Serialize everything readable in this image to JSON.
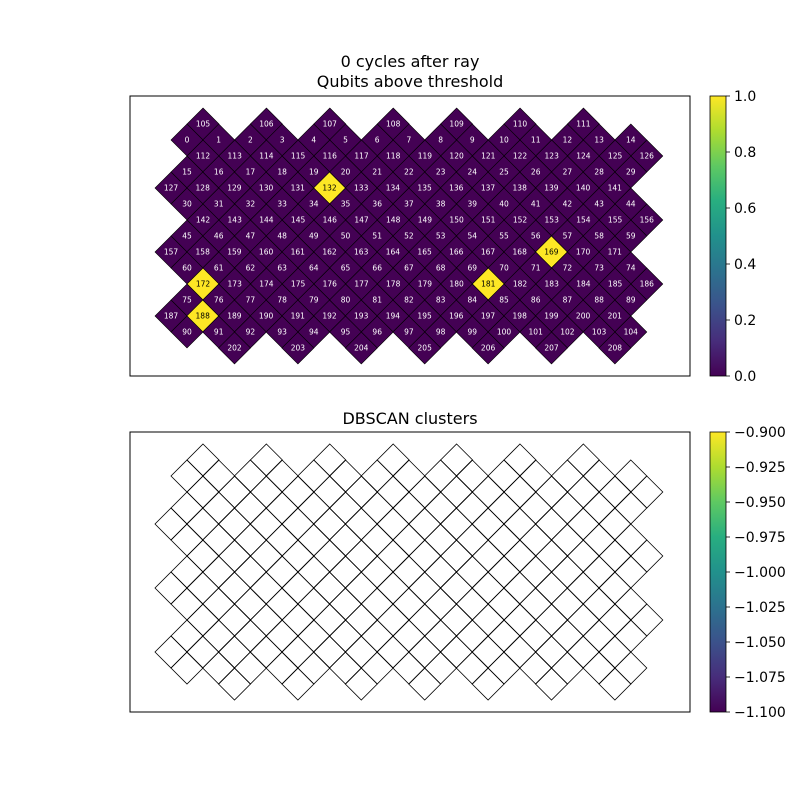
{
  "chart_data": [
    {
      "type": "heatmap",
      "title": "0 cycles after ray\nQubits above threshold",
      "title_lines": [
        "0 cycles after ray",
        "Qubits above threshold"
      ],
      "xlabel": "",
      "ylabel": "",
      "grid": false,
      "legend": "none",
      "colormap": "viridis",
      "value_range": [
        0,
        1
      ],
      "colorbar": {
        "position": "right",
        "range": [
          0,
          1
        ],
        "ticks": [
          0.0,
          0.2,
          0.4,
          0.6,
          0.8,
          1.0
        ],
        "tick_labels": [
          "0.0",
          "0.2",
          "0.4",
          "0.6",
          "0.8",
          "1.0"
        ]
      },
      "qubits_above_threshold": [
        132,
        169,
        172,
        181,
        188
      ],
      "cell_values": "1 for qubits 132, 169, 172, 181, 188; 0 for all other qubits 0–208",
      "lattice_rows": [
        {
          "labels": [
            105,
            106,
            107,
            108,
            109,
            110,
            111
          ]
        },
        {
          "labels": [
            0,
            1,
            2,
            3,
            4,
            5,
            6,
            7,
            8,
            9,
            10,
            11,
            12,
            13,
            14
          ]
        },
        {
          "labels": [
            112,
            113,
            114,
            115,
            116,
            117,
            118,
            119,
            120,
            121,
            122,
            123,
            124,
            125,
            126
          ]
        },
        {
          "labels": [
            15,
            16,
            17,
            18,
            19,
            20,
            21,
            22,
            23,
            24,
            25,
            26,
            27,
            28,
            29
          ]
        },
        {
          "labels": [
            127,
            128,
            129,
            130,
            131,
            132,
            133,
            134,
            135,
            136,
            137,
            138,
            139,
            140,
            141
          ]
        },
        {
          "labels": [
            30,
            31,
            32,
            33,
            34,
            35,
            36,
            37,
            38,
            39,
            40,
            41,
            42,
            43,
            44
          ]
        },
        {
          "labels": [
            142,
            143,
            144,
            145,
            146,
            147,
            148,
            149,
            150,
            151,
            152,
            153,
            154,
            155,
            156
          ]
        },
        {
          "labels": [
            45,
            46,
            47,
            48,
            49,
            50,
            51,
            52,
            53,
            54,
            55,
            56,
            57,
            58,
            59
          ]
        },
        {
          "labels": [
            157,
            158,
            159,
            160,
            161,
            162,
            163,
            164,
            165,
            166,
            167,
            168,
            169,
            170,
            171
          ]
        },
        {
          "labels": [
            60,
            61,
            62,
            63,
            64,
            65,
            66,
            67,
            68,
            69,
            70,
            71,
            72,
            73,
            74
          ]
        },
        {
          "labels": [
            172,
            173,
            174,
            175,
            176,
            177,
            178,
            179,
            180,
            181,
            182,
            183,
            184,
            185,
            186
          ]
        },
        {
          "labels": [
            75,
            76,
            77,
            78,
            79,
            80,
            81,
            82,
            83,
            84,
            85,
            86,
            87,
            88,
            89
          ]
        },
        {
          "labels": [
            187,
            188,
            189,
            190,
            191,
            192,
            193,
            194,
            195,
            196,
            197,
            198,
            199,
            200,
            201
          ]
        },
        {
          "labels": [
            90,
            91,
            92,
            93,
            94,
            95,
            96,
            97,
            98,
            99,
            100,
            101,
            102,
            103,
            104
          ]
        },
        {
          "labels": [
            202,
            203,
            204,
            205,
            206,
            207,
            208
          ]
        }
      ]
    },
    {
      "type": "heatmap",
      "title": "DBSCAN clusters",
      "xlabel": "",
      "ylabel": "",
      "grid": false,
      "legend": "none",
      "colormap": "viridis",
      "value_range": [
        -1.1,
        -0.9
      ],
      "colorbar": {
        "position": "right",
        "range": [
          -1.1,
          -0.9
        ],
        "ticks": [
          -0.9,
          -0.925,
          -0.95,
          -0.975,
          -1.0,
          -1.025,
          -1.05,
          -1.075,
          -1.1
        ],
        "tick_labels": [
          "−0.900",
          "−0.925",
          "−0.950",
          "−0.975",
          "−1.000",
          "−1.025",
          "−1.050",
          "−1.075",
          "−1.100"
        ]
      },
      "cell_values": "all qubits unfilled (no clusters)"
    }
  ],
  "colors": {
    "low": "#440154",
    "high": "#fde725",
    "cell_edge": "#000000",
    "label_on_low": "#ffffff",
    "label_on_high": "#000000"
  }
}
